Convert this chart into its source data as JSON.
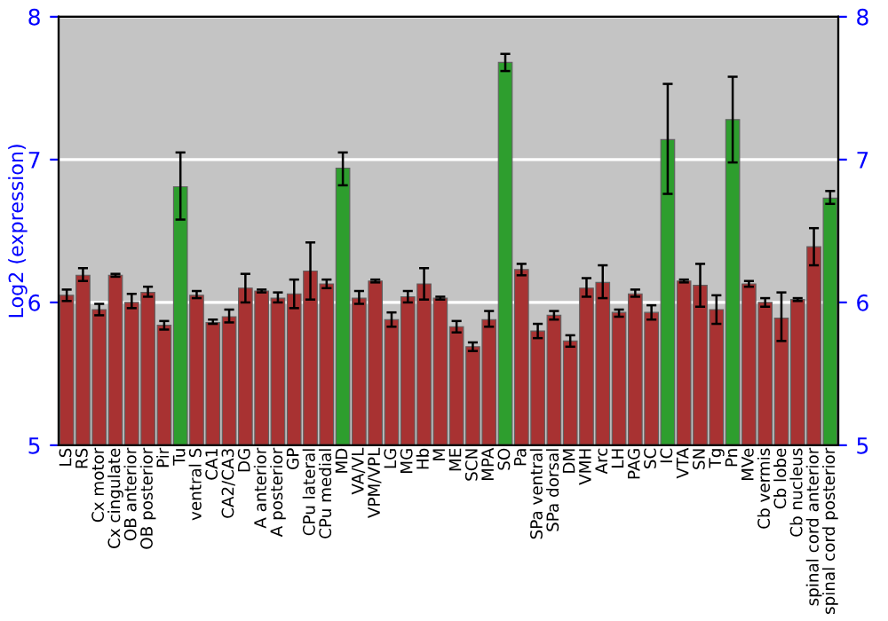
{
  "chart_data": {
    "type": "bar",
    "ylabel": "Log2 (expression)",
    "categories": [
      "LS",
      "RS",
      "Cx motor",
      "Cx cingulate",
      "OB anterior",
      "OB posterior",
      "Pir",
      "Tu",
      "ventral S",
      "CA1",
      "CA2/CA3",
      "DG",
      "A anterior",
      "A posterior",
      "GP",
      "CPu lateral",
      "CPu medial",
      "MD",
      "VA/VL",
      "VPM/VPL",
      "LG",
      "MG",
      "Hb",
      "M",
      "ME",
      "SCN",
      "MPA",
      "SO",
      "Pa",
      "SPa ventral",
      "SPa dorsal",
      "DM",
      "VMH",
      "Arc",
      "LH",
      "PAG",
      "SC",
      "IC",
      "VTA",
      "SN",
      "Tg",
      "Pn",
      "MVe",
      "Cb vermis",
      "Cb lobe",
      "Cb nucleus",
      "spinal cord anterior",
      "spinal cord posterior"
    ],
    "values": [
      6.05,
      6.19,
      5.95,
      6.19,
      6.0,
      6.07,
      5.84,
      6.81,
      6.05,
      5.86,
      5.9,
      6.1,
      6.08,
      6.03,
      6.06,
      6.22,
      6.13,
      6.94,
      6.03,
      6.15,
      5.88,
      6.04,
      6.13,
      6.03,
      5.83,
      5.69,
      5.88,
      7.68,
      6.23,
      5.8,
      5.91,
      5.73,
      6.1,
      6.14,
      5.93,
      6.06,
      5.93,
      7.14,
      6.15,
      6.12,
      5.95,
      7.28,
      6.13,
      6.0,
      5.89,
      6.02,
      6.39,
      6.73
    ],
    "errors": [
      [
        6.01,
        6.09
      ],
      [
        6.15,
        6.24
      ],
      [
        5.91,
        5.99
      ],
      [
        6.18,
        6.2
      ],
      [
        5.96,
        6.06
      ],
      [
        6.04,
        6.11
      ],
      [
        5.81,
        5.87
      ],
      [
        6.58,
        7.05
      ],
      [
        6.03,
        6.08
      ],
      [
        5.85,
        5.88
      ],
      [
        5.86,
        5.95
      ],
      [
        6.0,
        6.2
      ],
      [
        6.07,
        6.09
      ],
      [
        6.0,
        6.07
      ],
      [
        5.96,
        6.16
      ],
      [
        6.02,
        6.42
      ],
      [
        6.1,
        6.16
      ],
      [
        6.82,
        7.05
      ],
      [
        5.99,
        6.08
      ],
      [
        6.14,
        6.16
      ],
      [
        5.83,
        5.93
      ],
      [
        6.0,
        6.08
      ],
      [
        6.02,
        6.24
      ],
      [
        6.02,
        6.04
      ],
      [
        5.79,
        5.87
      ],
      [
        5.66,
        5.72
      ],
      [
        5.83,
        5.94
      ],
      [
        7.62,
        7.74
      ],
      [
        6.19,
        6.27
      ],
      [
        5.75,
        5.85
      ],
      [
        5.88,
        5.94
      ],
      [
        5.69,
        5.77
      ],
      [
        6.04,
        6.17
      ],
      [
        6.03,
        6.26
      ],
      [
        5.9,
        5.95
      ],
      [
        6.04,
        6.09
      ],
      [
        5.88,
        5.98
      ],
      [
        6.76,
        7.53
      ],
      [
        6.14,
        6.16
      ],
      [
        5.97,
        6.27
      ],
      [
        5.85,
        6.05
      ],
      [
        6.98,
        7.58
      ],
      [
        6.11,
        6.15
      ],
      [
        5.97,
        6.03
      ],
      [
        5.73,
        6.07
      ],
      [
        6.01,
        6.03
      ],
      [
        6.26,
        6.52
      ],
      [
        6.69,
        6.78
      ]
    ],
    "colors": [
      "#a83232",
      "#a83232",
      "#a83232",
      "#a83232",
      "#a83232",
      "#a83232",
      "#a83232",
      "#2e9e2e",
      "#a83232",
      "#a83232",
      "#a83232",
      "#a83232",
      "#a83232",
      "#a83232",
      "#a83232",
      "#a83232",
      "#a83232",
      "#2e9e2e",
      "#a83232",
      "#a83232",
      "#a83232",
      "#a83232",
      "#a83232",
      "#a83232",
      "#a83232",
      "#a83232",
      "#a83232",
      "#2e9e2e",
      "#a83232",
      "#a83232",
      "#a83232",
      "#a83232",
      "#a83232",
      "#a83232",
      "#a83232",
      "#a83232",
      "#a83232",
      "#2e9e2e",
      "#a83232",
      "#a83232",
      "#a83232",
      "#2e9e2e",
      "#a83232",
      "#a83232",
      "#a83232",
      "#a83232",
      "#a83232",
      "#2e9e2e"
    ],
    "ylim": [
      5,
      8
    ],
    "yticks": [
      5,
      6,
      7,
      8
    ],
    "y2lim": [
      5,
      8
    ],
    "y2ticks": [
      5,
      6,
      7,
      8
    ],
    "grid": "y"
  }
}
